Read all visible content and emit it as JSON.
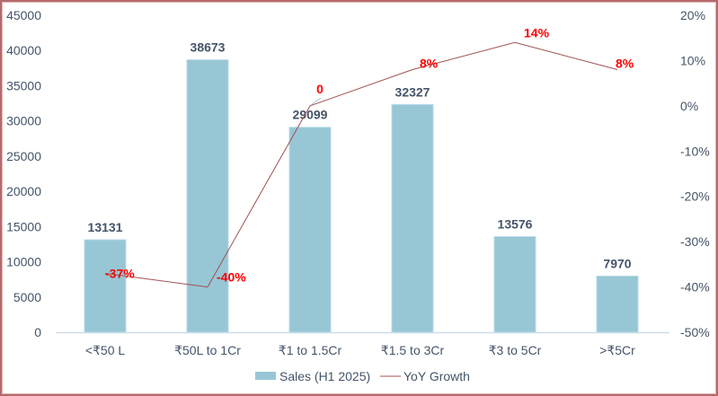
{
  "chart_data": {
    "type": "bar",
    "categories": [
      "<₹50 L",
      "₹50L to 1Cr",
      "₹1 to 1.5Cr",
      "₹1.5 to 3Cr",
      "₹3 to 5Cr",
      ">₹5Cr"
    ],
    "series": [
      {
        "name": "Sales (H1 2025)",
        "type": "bar",
        "axis": "left",
        "values": [
          13131,
          38673,
          29099,
          32327,
          13576,
          7970
        ],
        "labels": [
          "13131",
          "38673",
          "29099",
          "32327",
          "13576",
          "7970"
        ],
        "color": "#97c6d5"
      },
      {
        "name": "YoY Growth",
        "type": "line",
        "axis": "right",
        "values": [
          -37,
          -40,
          0,
          8,
          14,
          8
        ],
        "labels": [
          "-37%",
          "-40%",
          "0",
          "8%",
          "14%",
          "8%"
        ],
        "color": "#a05050"
      }
    ],
    "y_left": {
      "range": [
        0,
        45000
      ],
      "ticks": [
        "0",
        "5000",
        "10000",
        "15000",
        "20000",
        "25000",
        "30000",
        "35000",
        "40000",
        "45000"
      ]
    },
    "y_right": {
      "range": [
        -50,
        20
      ],
      "unit": "%",
      "ticks": [
        "-50%",
        "-40%",
        "-30%",
        "-20%",
        "-10%",
        "0%",
        "10%",
        "20%"
      ]
    },
    "grid": false,
    "legend": "bottom",
    "label_color_line": "#ff0000",
    "label_color_bar": "#44546a"
  }
}
